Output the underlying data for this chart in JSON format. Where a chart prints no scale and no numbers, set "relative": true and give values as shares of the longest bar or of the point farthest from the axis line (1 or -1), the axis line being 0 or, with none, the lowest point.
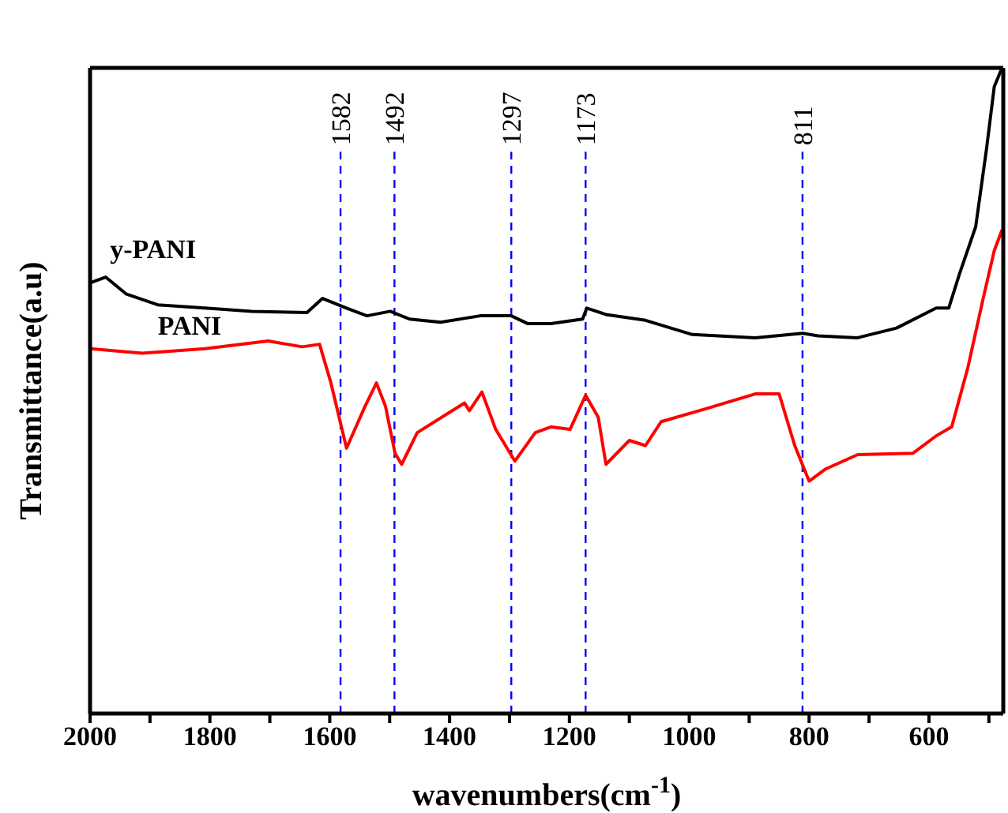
{
  "chart_data": {
    "type": "line",
    "relative": true,
    "xlabel": "wavenumbers(cm$^{-1}$)",
    "ylabel": "Transmittance(a.u)",
    "xlim": [
      2000,
      476
    ],
    "xticks": [
      2000,
      {
        "value": 1900,
        "label": null
      },
      1800,
      {
        "value": 1700,
        "label": null
      },
      1600,
      {
        "value": 1500,
        "label": null
      },
      1400,
      {
        "value": 1300,
        "label": null
      },
      1200,
      {
        "value": 1100,
        "label": null
      },
      1000,
      {
        "value": 900,
        "label": null
      },
      800,
      {
        "value": 700,
        "label": null
      },
      600,
      {
        "value": 500,
        "label": null
      }
    ],
    "tick_labels": "x",
    "marker": "none",
    "line_style": "solid",
    "series": [
      {
        "name": "y-PANI",
        "color": "#000000",
        "x": [
          2000,
          1974,
          1940,
          1887,
          1808,
          1730,
          1638,
          1612,
          1572,
          1538,
          1499,
          1467,
          1415,
          1349,
          1297,
          1270,
          1231,
          1178,
          1171,
          1139,
          1073,
          995,
          890,
          811,
          785,
          719,
          654,
          588,
          567,
          549,
          522,
          504,
          491,
          478
        ],
        "values": [
          0.667,
          0.676,
          0.65,
          0.633,
          0.628,
          0.623,
          0.621,
          0.643,
          0.628,
          0.616,
          0.623,
          0.611,
          0.606,
          0.616,
          0.616,
          0.604,
          0.604,
          0.611,
          0.628,
          0.618,
          0.609,
          0.587,
          0.582,
          0.589,
          0.585,
          0.582,
          0.597,
          0.628,
          0.628,
          0.681,
          0.754,
          0.874,
          0.971,
          1.0
        ]
      },
      {
        "name": "PANI",
        "color": "#ff0000",
        "x": [
          2000,
          1913,
          1808,
          1703,
          1646,
          1617,
          1598,
          1572,
          1541,
          1522,
          1507,
          1491,
          1480,
          1454,
          1375,
          1367,
          1346,
          1323,
          1291,
          1257,
          1231,
          1199,
          1173,
          1152,
          1139,
          1100,
          1073,
          1047,
          969,
          890,
          850,
          824,
          800,
          772,
          719,
          627,
          588,
          562,
          535,
          509,
          491,
          478
        ],
        "values": [
          0.565,
          0.558,
          0.565,
          0.577,
          0.568,
          0.572,
          0.512,
          0.411,
          0.476,
          0.512,
          0.476,
          0.403,
          0.386,
          0.435,
          0.481,
          0.469,
          0.498,
          0.44,
          0.391,
          0.435,
          0.444,
          0.44,
          0.493,
          0.459,
          0.386,
          0.423,
          0.415,
          0.452,
          0.473,
          0.495,
          0.495,
          0.415,
          0.36,
          0.379,
          0.401,
          0.403,
          0.43,
          0.444,
          0.536,
          0.645,
          0.717,
          0.749
        ]
      }
    ],
    "ref_lines": [
      {
        "axis": "x",
        "value": 1582,
        "label": "1582",
        "color": "#0000ff",
        "line_style": "dashed"
      },
      {
        "axis": "x",
        "value": 1492,
        "label": "1492",
        "color": "#0000ff",
        "line_style": "dashed"
      },
      {
        "axis": "x",
        "value": 1297,
        "label": "1297",
        "color": "#0000ff",
        "line_style": "dashed"
      },
      {
        "axis": "x",
        "value": 1173,
        "label": "1173",
        "color": "#0000ff",
        "line_style": "dashed"
      },
      {
        "axis": "x",
        "value": 811,
        "label": "811",
        "color": "#0000ff",
        "line_style": "dashed"
      }
    ]
  }
}
